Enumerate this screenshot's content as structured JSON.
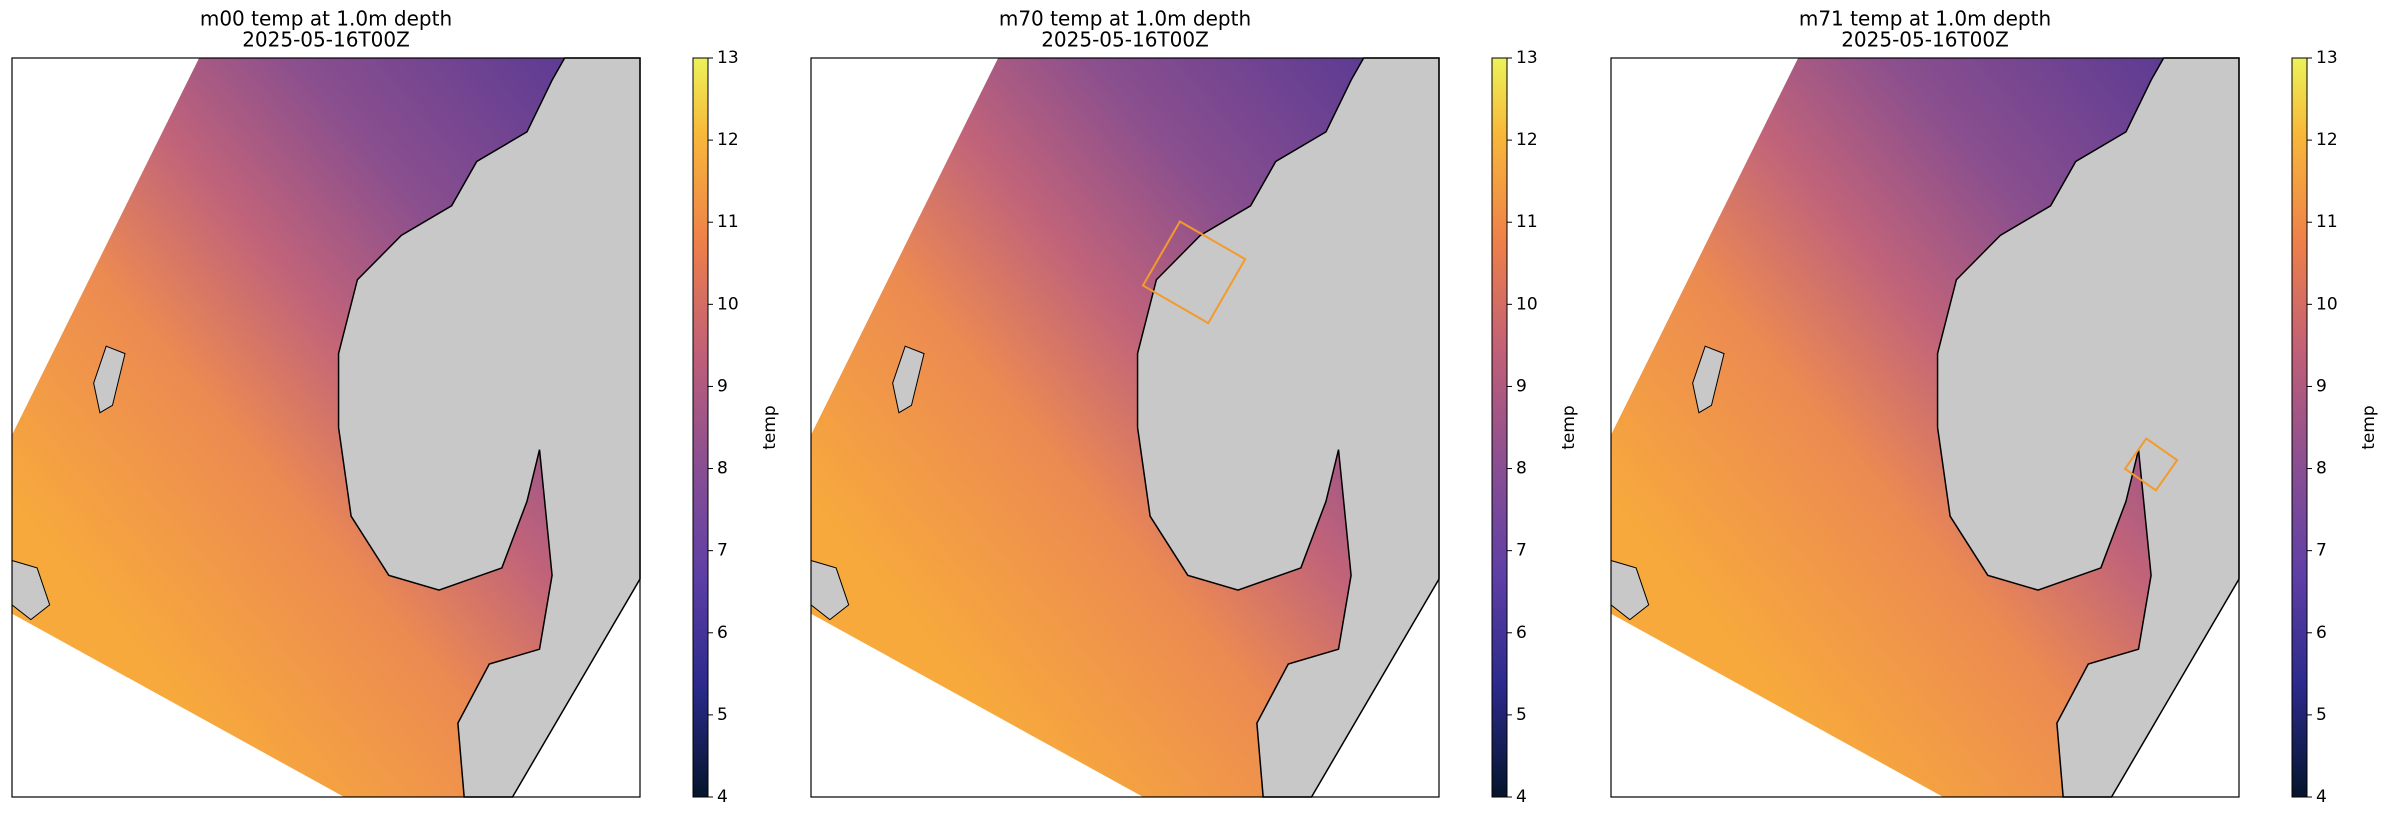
{
  "panels": [
    {
      "title": "m00 temp at 1.0m depth",
      "subtitle": "2025-05-16T00Z",
      "colorbar": {
        "label": "temp",
        "lim": [
          4,
          13
        ],
        "ticks": [
          4,
          5,
          6,
          7,
          8,
          9,
          10,
          11,
          12,
          13
        ]
      }
    },
    {
      "title": "m70 temp at 1.0m depth",
      "subtitle": "2025-05-16T00Z",
      "colorbar": {
        "label": "temp",
        "lim": [
          4,
          13
        ],
        "ticks": [
          4,
          5,
          6,
          7,
          8,
          9,
          10,
          11,
          12,
          13
        ]
      }
    },
    {
      "title": "m71 temp at 1.0m depth",
      "subtitle": "2025-05-16T00Z",
      "colorbar": {
        "label": "temp",
        "lim": [
          4,
          13
        ],
        "ticks": [
          4,
          5,
          6,
          7,
          8,
          9,
          10,
          11,
          12,
          13
        ]
      }
    }
  ]
}
